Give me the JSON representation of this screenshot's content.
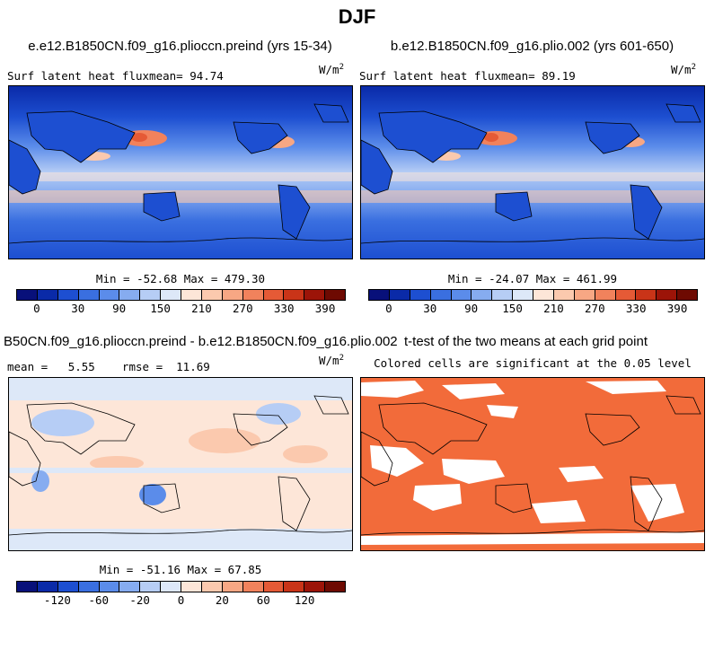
{
  "figure_title": "DJF",
  "panels": {
    "p1": {
      "title": "e.e12.B1850CN.f09_g16.plioccn.preind (yrs 15-34)",
      "left_label": "Surf latent heat fluxmean=  94.74",
      "units": "W/m",
      "units_sup": "2",
      "minmax": "Min = -52.68 Max = 479.30"
    },
    "p2": {
      "title": "b.e12.B1850CN.f09_g16.plio.002 (yrs 601-650)",
      "left_label": "Surf latent heat fluxmean=  89.19",
      "units": "W/m",
      "units_sup": "2",
      "minmax": "Min = -24.07 Max = 461.99"
    },
    "p3": {
      "title": "B50CN.f09_g16.plioccn.preind - b.e12.B1850CN.f09_g16.plio.002",
      "left_label": "mean =   5.55    rmse =  11.69",
      "units": "W/m",
      "units_sup": "2",
      "minmax": "Min = -51.16 Max = 67.85"
    },
    "p4": {
      "title": "t-test of the two means at each grid point",
      "subtitle": "Colored cells are significant at the 0.05 level"
    }
  },
  "colorbars": {
    "absolute": {
      "colors": [
        "#08107a",
        "#0a2aa8",
        "#1d4fd1",
        "#3a6fe0",
        "#5b8cea",
        "#86acf0",
        "#b6cdf5",
        "#dde8f8",
        "#fde6d8",
        "#fbc9ae",
        "#f7a784",
        "#f1825c",
        "#e55a36",
        "#c93418",
        "#9c1408",
        "#6e0a02"
      ],
      "ticks": [
        "0",
        "30",
        "90",
        "150",
        "210",
        "270",
        "330",
        "390"
      ]
    },
    "difference": {
      "colors": [
        "#08107a",
        "#0a2aa8",
        "#1d4fd1",
        "#3a6fe0",
        "#5b8cea",
        "#86acf0",
        "#b6cdf5",
        "#dde8f8",
        "#fde6d8",
        "#fbc9ae",
        "#f7a784",
        "#f1825c",
        "#e55a36",
        "#c93418",
        "#9c1408",
        "#6e0a02"
      ],
      "ticks": [
        "-120",
        "-60",
        "-20",
        "0",
        "20",
        "60",
        "120"
      ]
    }
  },
  "colors": {
    "significant": "#f26b3a",
    "ocean_mid": "#2f62d8",
    "diff_background": "#fde6d8"
  },
  "chart_data": [
    {
      "type": "heatmap",
      "title": "e.e12.B1850CN.f09_g16.plioccn.preind (yrs 15-34)",
      "field": "Surf latent heat flux",
      "units": "W/m2",
      "mean": 94.74,
      "min": -52.68,
      "max": 479.3,
      "contour_levels": [
        0,
        30,
        90,
        150,
        210,
        270,
        330,
        390
      ]
    },
    {
      "type": "heatmap",
      "title": "b.e12.B1850CN.f09_g16.plio.002 (yrs 601-650)",
      "field": "Surf latent heat flux",
      "units": "W/m2",
      "mean": 89.19,
      "min": -24.07,
      "max": 461.99,
      "contour_levels": [
        0,
        30,
        90,
        150,
        210,
        270,
        330,
        390
      ]
    },
    {
      "type": "heatmap",
      "title": "B50CN.f09_g16.plioccn.preind - b.e12.B1850CN.f09_g16.plio.002",
      "units": "W/m2",
      "mean": 5.55,
      "rmse": 11.69,
      "min": -51.16,
      "max": 67.85,
      "contour_levels": [
        -120,
        -60,
        -20,
        0,
        20,
        60,
        120
      ]
    },
    {
      "type": "heatmap",
      "title": "t-test of the two means at each grid point",
      "note": "Colored cells are significant at the 0.05 level"
    }
  ]
}
